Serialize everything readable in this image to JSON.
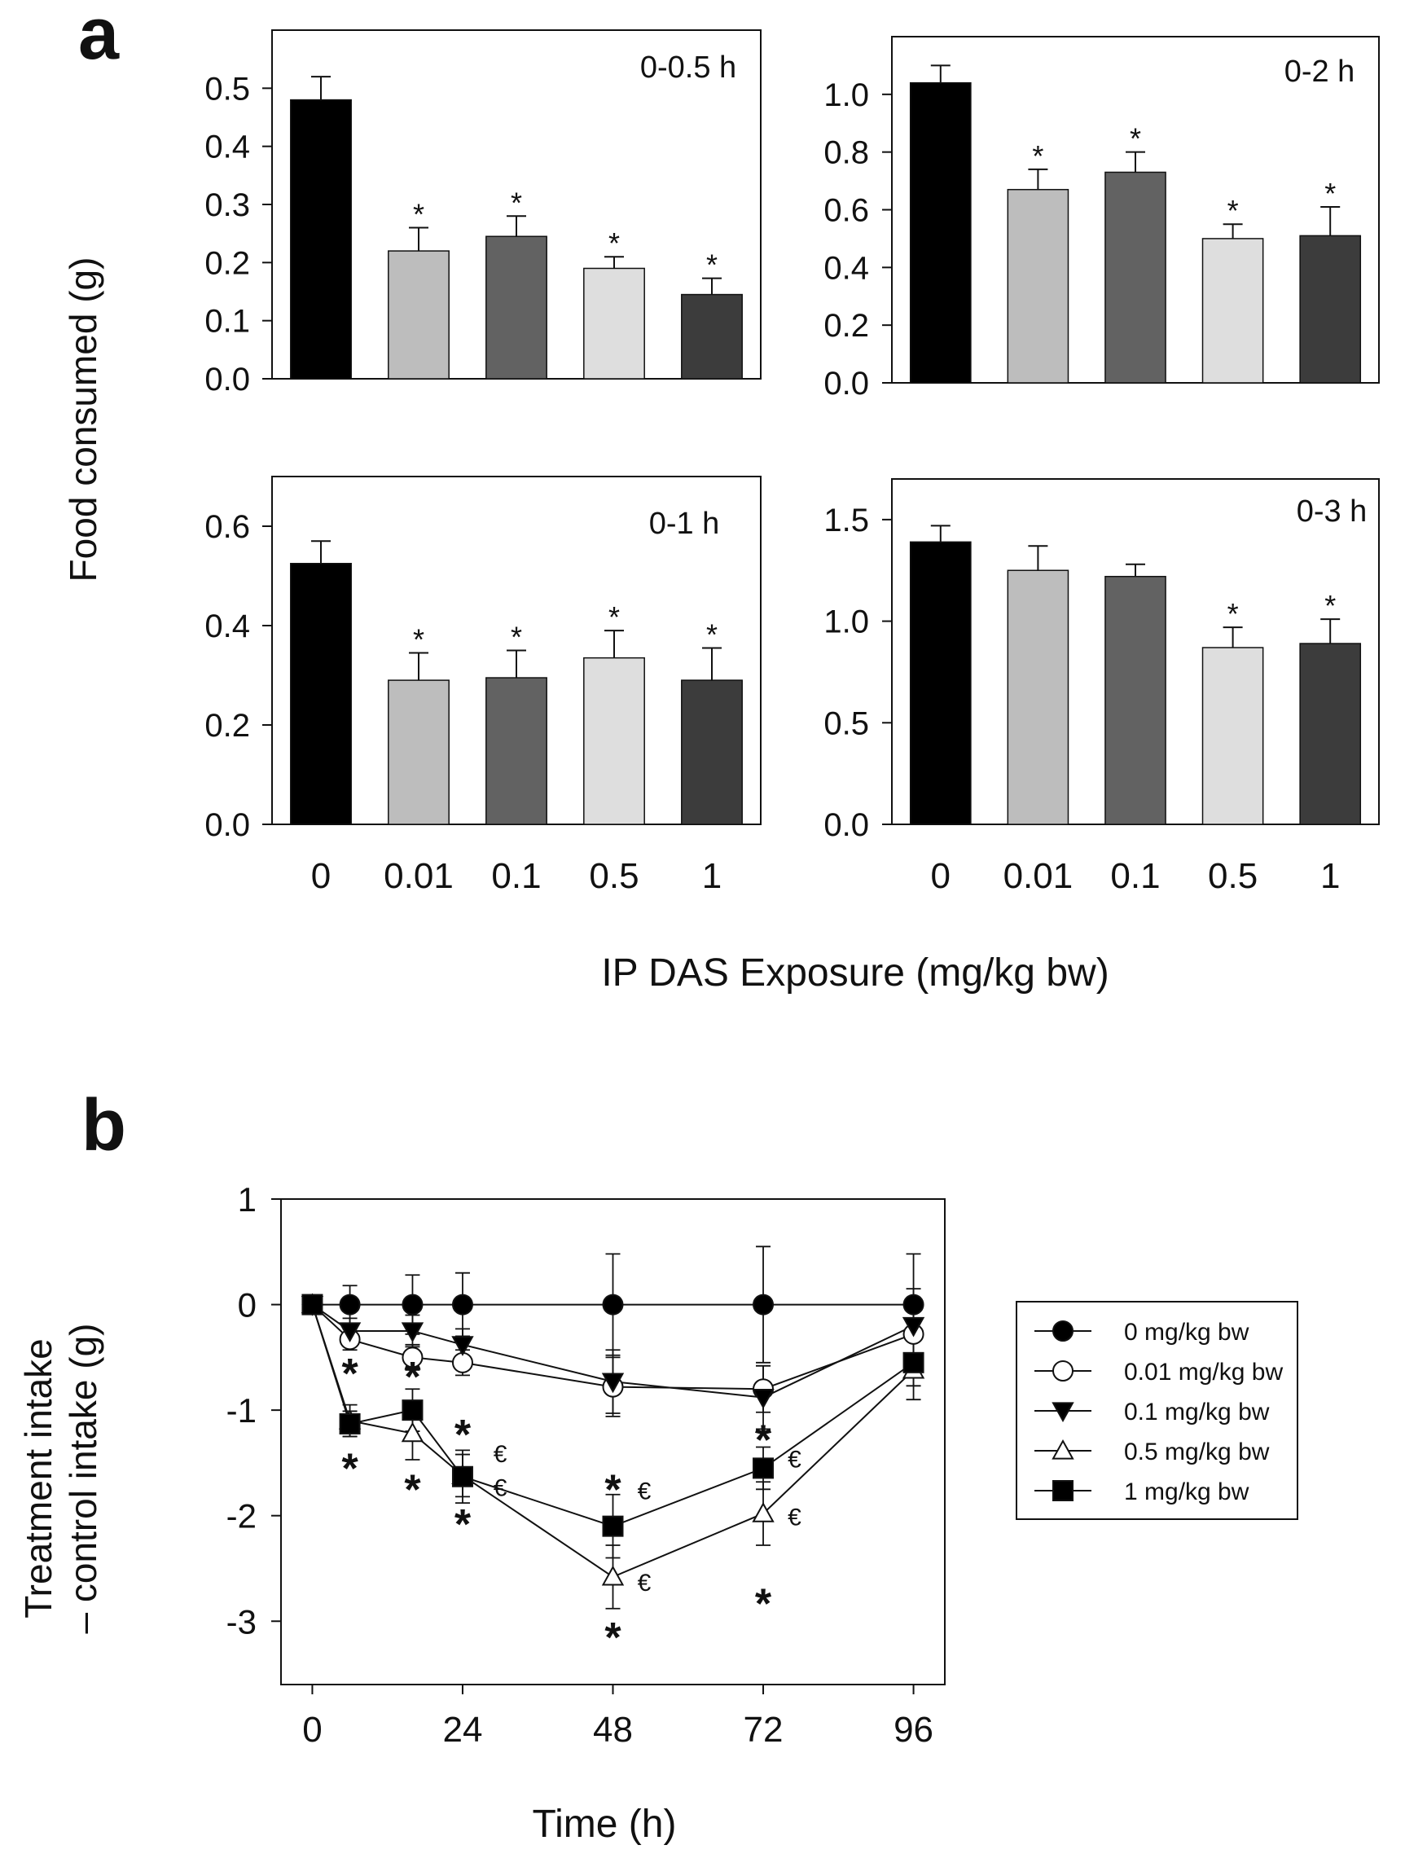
{
  "figure": {
    "panel_a_label": "a",
    "panel_b_label": "b",
    "a_ylabel": "Food consumed (g)",
    "a_xlabel": "IP DAS Exposure (mg/kg bw)",
    "b_ylabel_line1": "Treatment intake",
    "b_ylabel_line2": "– control intake (g)",
    "b_xlabel": "Time (h)"
  },
  "chart_data": [
    {
      "type": "bar",
      "title": "0-0.5 h",
      "categories": [
        "0",
        "0.01",
        "0.1",
        "0.5",
        "1"
      ],
      "values": [
        0.48,
        0.22,
        0.245,
        0.19,
        0.145
      ],
      "errors": [
        0.04,
        0.04,
        0.035,
        0.02,
        0.028
      ],
      "significant": [
        false,
        true,
        true,
        true,
        true
      ],
      "sig_label": "*",
      "ylim": [
        0,
        0.6
      ],
      "yticks": [
        0,
        0.1,
        0.2,
        0.3,
        0.4,
        0.5
      ],
      "ytick_labels": [
        "0.0",
        "0.1",
        "0.2",
        "0.3",
        "0.4",
        "0.5"
      ],
      "xlabel": "IP DAS Exposure (mg/kg bw)",
      "ylabel": "Food consumed (g)",
      "colors": [
        "#000000",
        "#bdbdbd",
        "#626262",
        "#dedede",
        "#3c3c3c"
      ]
    },
    {
      "type": "bar",
      "title": "0-2 h",
      "categories": [
        "0",
        "0.01",
        "0.1",
        "0.5",
        "1"
      ],
      "values": [
        1.04,
        0.67,
        0.73,
        0.5,
        0.51
      ],
      "errors": [
        0.06,
        0.07,
        0.07,
        0.05,
        0.1
      ],
      "significant": [
        false,
        true,
        true,
        true,
        true
      ],
      "sig_label": "*",
      "ylim": [
        0,
        1.2
      ],
      "yticks": [
        0,
        0.2,
        0.4,
        0.6,
        0.8,
        1.0
      ],
      "ytick_labels": [
        "0.0",
        "0.2",
        "0.4",
        "0.6",
        "0.8",
        "1.0"
      ],
      "xlabel": "IP DAS Exposure (mg/kg bw)",
      "ylabel": "Food consumed (g)",
      "colors": [
        "#000000",
        "#bdbdbd",
        "#626262",
        "#dedede",
        "#3c3c3c"
      ]
    },
    {
      "type": "bar",
      "title": "0-1 h",
      "categories": [
        "0",
        "0.01",
        "0.1",
        "0.5",
        "1"
      ],
      "values": [
        0.525,
        0.29,
        0.295,
        0.335,
        0.29
      ],
      "errors": [
        0.045,
        0.055,
        0.055,
        0.055,
        0.065
      ],
      "significant": [
        false,
        true,
        true,
        true,
        true
      ],
      "sig_label": "*",
      "ylim": [
        0,
        0.7
      ],
      "yticks": [
        0,
        0.2,
        0.4,
        0.6
      ],
      "ytick_labels": [
        "0.0",
        "0.2",
        "0.4",
        "0.6"
      ],
      "xtick_labels": [
        "0",
        "0.01",
        "0.1",
        "0.5",
        "1"
      ],
      "xlabel": "IP DAS Exposure (mg/kg bw)",
      "ylabel": "Food consumed (g)",
      "colors": [
        "#000000",
        "#bdbdbd",
        "#626262",
        "#dedede",
        "#3c3c3c"
      ]
    },
    {
      "type": "bar",
      "title": "0-3 h",
      "categories": [
        "0",
        "0.01",
        "0.1",
        "0.5",
        "1"
      ],
      "values": [
        1.39,
        1.25,
        1.22,
        0.87,
        0.89
      ],
      "errors": [
        0.08,
        0.12,
        0.06,
        0.1,
        0.12
      ],
      "significant": [
        false,
        false,
        false,
        true,
        true
      ],
      "sig_label": "*",
      "ylim": [
        0,
        1.7
      ],
      "yticks": [
        0,
        0.5,
        1.0,
        1.5
      ],
      "ytick_labels": [
        "0.0",
        "0.5",
        "1.0",
        "1.5"
      ],
      "xtick_labels": [
        "0",
        "0.01",
        "0.1",
        "0.5",
        "1"
      ],
      "xlabel": "IP DAS Exposure (mg/kg bw)",
      "ylabel": "Food consumed (g)",
      "colors": [
        "#000000",
        "#bdbdbd",
        "#626262",
        "#dedede",
        "#3c3c3c"
      ]
    },
    {
      "type": "line",
      "title": "",
      "xlabel": "Time (h)",
      "ylabel": "Treatment intake – control intake (g)",
      "xlim": [
        -5,
        101
      ],
      "ylim": [
        -3.6,
        1.0
      ],
      "xticks": [
        0,
        24,
        48,
        72,
        96
      ],
      "xtick_labels": [
        "0",
        "24",
        "48",
        "72",
        "96"
      ],
      "yticks": [
        1,
        0,
        -1,
        -2,
        -3
      ],
      "ytick_labels": [
        "1",
        "0",
        "-1",
        "-2",
        "-3"
      ],
      "x": [
        0,
        6,
        16,
        24,
        48,
        72,
        96
      ],
      "series": [
        {
          "name": "0 mg/kg bw",
          "marker": "circle",
          "fill": "#000000",
          "values": [
            0,
            0,
            0,
            0,
            0,
            0,
            0
          ],
          "errors": [
            0,
            0.18,
            0.28,
            0.3,
            0.48,
            0.55,
            0.48
          ]
        },
        {
          "name": "0.01 mg/kg bw",
          "marker": "circle",
          "fill": "#ffffff",
          "values": [
            0,
            -0.33,
            -0.5,
            -0.55,
            -0.78,
            -0.8,
            -0.28
          ],
          "errors": [
            0,
            0.1,
            0.12,
            0.12,
            0.28,
            0.22,
            0.3
          ]
        },
        {
          "name": "0.1 mg/kg bw",
          "marker": "triangle-down",
          "fill": "#000000",
          "values": [
            0,
            -0.25,
            -0.25,
            -0.38,
            -0.73,
            -0.88,
            -0.2
          ],
          "errors": [
            0,
            0.12,
            0.15,
            0.15,
            0.3,
            0.3,
            0.35
          ]
        },
        {
          "name": "0.5 mg/kg bw",
          "marker": "triangle-up",
          "fill": "#ffffff",
          "values": [
            0,
            -1.1,
            -1.22,
            -1.62,
            -2.58,
            -1.98,
            -0.62
          ],
          "errors": [
            0,
            0.15,
            0.25,
            0.2,
            0.3,
            0.3,
            0.28
          ]
        },
        {
          "name": "1 mg/kg bw",
          "marker": "square",
          "fill": "#000000",
          "values": [
            0,
            -1.13,
            -1.0,
            -1.63,
            -2.1,
            -1.55,
            -0.55
          ],
          "errors": [
            0,
            0.12,
            0.2,
            0.25,
            0.3,
            0.2,
            0.22
          ]
        }
      ],
      "annotations": [
        {
          "text": "*",
          "x": 6,
          "y": -0.62
        },
        {
          "text": "*",
          "x": 6,
          "y": -1.52
        },
        {
          "text": "*",
          "x": 16,
          "y": -0.65
        },
        {
          "text": "*",
          "x": 16,
          "y": -1.72
        },
        {
          "text": "*",
          "x": 24,
          "y": -1.2
        },
        {
          "text": "*",
          "x": 24,
          "y": -2.05
        },
        {
          "text": "€",
          "x": 30,
          "y": -1.4
        },
        {
          "text": "€",
          "x": 30,
          "y": -1.72
        },
        {
          "text": "*",
          "x": 48,
          "y": -1.72
        },
        {
          "text": "*",
          "x": 48,
          "y": -3.12
        },
        {
          "text": "€",
          "x": 53,
          "y": -1.75
        },
        {
          "text": "€",
          "x": 53,
          "y": -2.62
        },
        {
          "text": "*",
          "x": 72,
          "y": -1.25
        },
        {
          "text": "*",
          "x": 72,
          "y": -2.8
        },
        {
          "text": "€",
          "x": 77,
          "y": -1.45
        },
        {
          "text": "€",
          "x": 77,
          "y": -2.0
        }
      ],
      "legend": {
        "position": "right",
        "entries": [
          "0 mg/kg bw",
          "0.01 mg/kg bw",
          "0.1 mg/kg bw",
          "0.5 mg/kg bw",
          "1 mg/kg bw"
        ]
      }
    }
  ]
}
